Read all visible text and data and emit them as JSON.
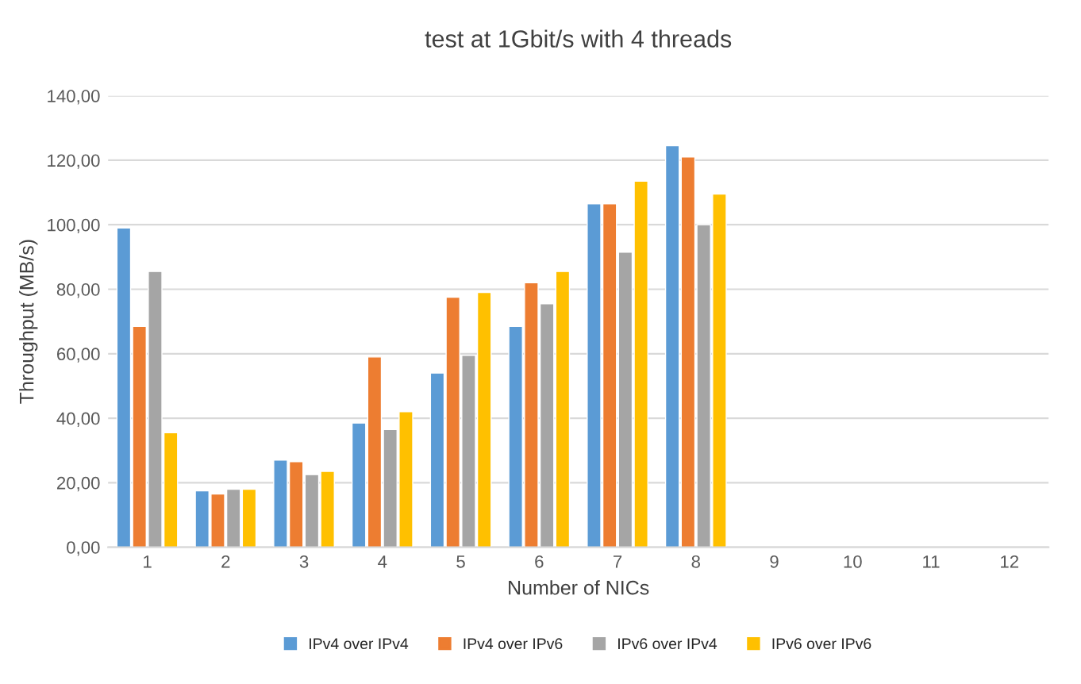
{
  "chart_data": {
    "type": "bar",
    "title": "test at 1Gbit/s with 4 threads",
    "xlabel": "Number of NICs",
    "ylabel": "Throughput (MB/s)",
    "categories": [
      "1",
      "2",
      "3",
      "4",
      "5",
      "6",
      "7",
      "8",
      "9",
      "10",
      "11",
      "12"
    ],
    "series": [
      {
        "name": "IPv4 over IPv4",
        "color": "#5b9bd5",
        "values": [
          99,
          17.5,
          27,
          38.5,
          54,
          68.5,
          106.5,
          124.5,
          null,
          null,
          null,
          null
        ]
      },
      {
        "name": "IPv4 over IPv6",
        "color": "#ed7d31",
        "values": [
          68.5,
          16.5,
          26.5,
          59,
          77.5,
          82,
          106.5,
          121,
          null,
          null,
          null,
          null
        ]
      },
      {
        "name": "IPv6 over IPv4",
        "color": "#a5a5a5",
        "values": [
          85.5,
          18,
          22.5,
          36.5,
          59.5,
          75.5,
          91.5,
          100,
          null,
          null,
          null,
          null
        ]
      },
      {
        "name": "IPv6 over IPv6",
        "color": "#ffc000",
        "values": [
          35.5,
          18,
          23.5,
          42,
          79,
          85.5,
          113.5,
          109.5,
          null,
          null,
          null,
          null
        ]
      }
    ],
    "ylim": [
      0,
      140
    ],
    "yticks": [
      {
        "value": 0,
        "label": "0,00"
      },
      {
        "value": 20,
        "label": "20,00"
      },
      {
        "value": 40,
        "label": "40,00"
      },
      {
        "value": 60,
        "label": "60,00"
      },
      {
        "value": 80,
        "label": "80,00"
      },
      {
        "value": 100,
        "label": "100,00"
      },
      {
        "value": 120,
        "label": "120,00"
      },
      {
        "value": 140,
        "label": "140,00"
      }
    ],
    "grid": "y",
    "legend": "bottom"
  }
}
